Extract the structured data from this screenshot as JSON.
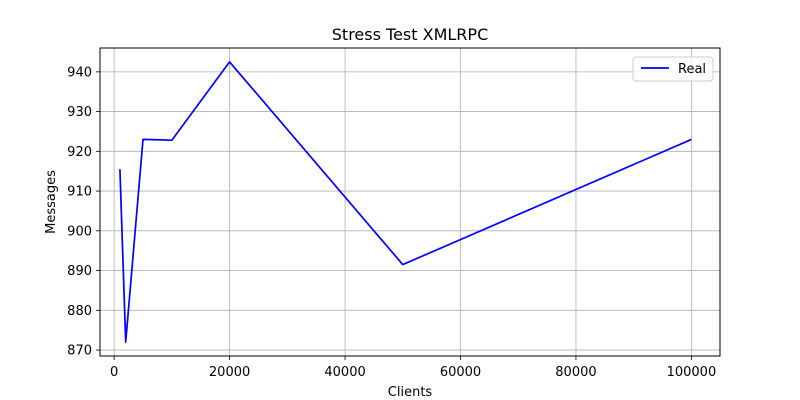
{
  "chart_data": {
    "type": "line",
    "title": "Stress Test XMLRPC",
    "xlabel": "Clients",
    "ylabel": "Messages",
    "xlim": [
      -2450,
      104950
    ],
    "ylim": [
      868.5,
      946
    ],
    "xticks": [
      0,
      20000,
      40000,
      60000,
      80000,
      100000
    ],
    "yticks": [
      870,
      880,
      890,
      900,
      910,
      920,
      930,
      940
    ],
    "grid": true,
    "legend": "top-right",
    "series": [
      {
        "name": "Real",
        "color": "#0000ff",
        "x": [
          1000,
          2000,
          5000,
          10000,
          20000,
          50000,
          100000
        ],
        "y": [
          915.5,
          872,
          923,
          922.8,
          942.5,
          891.5,
          923
        ]
      }
    ]
  }
}
